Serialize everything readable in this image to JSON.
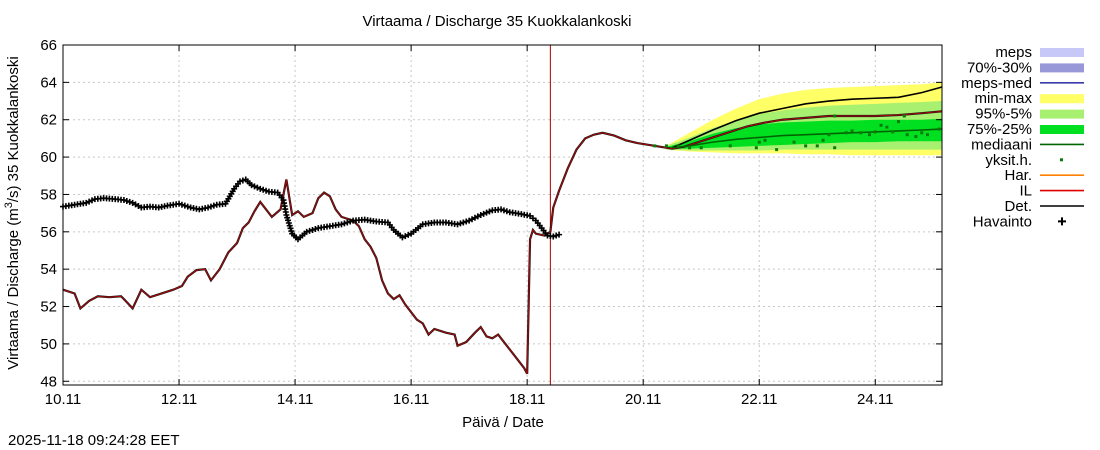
{
  "chart_data": {
    "type": "line",
    "title": "Virtaama / Discharge  35 Kuokkalankoski",
    "xlabel": "Päivä / Date",
    "ylabel_main": "Virtaama / Discharge (m",
    "ylabel_sup": "3",
    "ylabel_tail": "/s)  35 Kuokkalankoski",
    "timestamp": "2025-11-18 09:24:28 EET",
    "xlim": [
      10.0,
      25.15
    ],
    "ylim": [
      47.8,
      66.0
    ],
    "x_ticks": [
      {
        "x": 10,
        "label": "10.11"
      },
      {
        "x": 12,
        "label": "12.11"
      },
      {
        "x": 14,
        "label": "14.11"
      },
      {
        "x": 16,
        "label": "16.11"
      },
      {
        "x": 18,
        "label": "18.11"
      },
      {
        "x": 20,
        "label": "20.11"
      },
      {
        "x": 22,
        "label": "22.11"
      },
      {
        "x": 24,
        "label": "24.11"
      }
    ],
    "y_ticks": [
      {
        "y": 48,
        "label": "48"
      },
      {
        "y": 50,
        "label": "50"
      },
      {
        "y": 52,
        "label": "52"
      },
      {
        "y": 54,
        "label": "54"
      },
      {
        "y": 56,
        "label": "56"
      },
      {
        "y": 58,
        "label": "58"
      },
      {
        "y": 60,
        "label": "60"
      },
      {
        "y": 62,
        "label": "62"
      },
      {
        "y": 64,
        "label": "64"
      },
      {
        "y": 66,
        "label": "66"
      }
    ],
    "forecast_start_x": 18.4,
    "legend": [
      {
        "label": "meps",
        "kind": "box",
        "color": "#c8c8f8"
      },
      {
        "label": "70%-30%",
        "kind": "box",
        "color": "#9898d8"
      },
      {
        "label": "meps-med",
        "kind": "line",
        "color": "#3a3aa8"
      },
      {
        "label": "min-max",
        "kind": "box",
        "color": "#ffff66"
      },
      {
        "label": "95%-5%",
        "kind": "box",
        "color": "#a8f070"
      },
      {
        "label": "75%-25%",
        "kind": "box",
        "color": "#00e020"
      },
      {
        "label": "mediaani",
        "kind": "line",
        "color": "#006400"
      },
      {
        "label": "yksit.h.",
        "kind": "dot",
        "color": "#0a7a0a"
      },
      {
        "label": "Har.",
        "kind": "line",
        "color": "#ff8000"
      },
      {
        "label": "IL",
        "kind": "line",
        "color": "#e00000"
      },
      {
        "label": "Det.",
        "kind": "line",
        "color": "#000000"
      },
      {
        "label": "Havainto",
        "kind": "plus",
        "color": "#000000"
      }
    ],
    "series": [
      {
        "name": "Havainto",
        "style": "plus",
        "color": "#000000",
        "points": [
          [
            10.0,
            57.35
          ],
          [
            10.2,
            57.45
          ],
          [
            10.4,
            57.55
          ],
          [
            10.55,
            57.75
          ],
          [
            10.7,
            57.8
          ],
          [
            10.9,
            57.75
          ],
          [
            11.05,
            57.7
          ],
          [
            11.2,
            57.55
          ],
          [
            11.35,
            57.3
          ],
          [
            11.5,
            57.35
          ],
          [
            11.65,
            57.3
          ],
          [
            11.8,
            57.4
          ],
          [
            12.0,
            57.5
          ],
          [
            12.1,
            57.4
          ],
          [
            12.2,
            57.3
          ],
          [
            12.35,
            57.2
          ],
          [
            12.5,
            57.3
          ],
          [
            12.65,
            57.45
          ],
          [
            12.8,
            57.5
          ],
          [
            12.95,
            58.3
          ],
          [
            13.05,
            58.7
          ],
          [
            13.15,
            58.8
          ],
          [
            13.25,
            58.5
          ],
          [
            13.4,
            58.3
          ],
          [
            13.55,
            58.15
          ],
          [
            13.7,
            58.1
          ],
          [
            13.8,
            57.7
          ],
          [
            13.85,
            56.9
          ],
          [
            13.95,
            55.9
          ],
          [
            14.05,
            55.6
          ],
          [
            14.2,
            56.0
          ],
          [
            14.4,
            56.2
          ],
          [
            14.6,
            56.3
          ],
          [
            14.8,
            56.4
          ],
          [
            15.0,
            56.6
          ],
          [
            15.2,
            56.65
          ],
          [
            15.4,
            56.55
          ],
          [
            15.6,
            56.5
          ],
          [
            15.7,
            56.1
          ],
          [
            15.85,
            55.7
          ],
          [
            16.0,
            55.9
          ],
          [
            16.2,
            56.4
          ],
          [
            16.4,
            56.5
          ],
          [
            16.6,
            56.5
          ],
          [
            16.8,
            56.4
          ],
          [
            17.0,
            56.6
          ],
          [
            17.2,
            56.9
          ],
          [
            17.4,
            57.15
          ],
          [
            17.55,
            57.2
          ],
          [
            17.7,
            57.05
          ],
          [
            17.9,
            56.95
          ],
          [
            18.05,
            56.85
          ],
          [
            18.15,
            56.6
          ],
          [
            18.25,
            56.2
          ],
          [
            18.35,
            55.8
          ],
          [
            18.45,
            55.75
          ],
          [
            18.55,
            55.85
          ],
          [
            18.62,
            55.9
          ]
        ]
      },
      {
        "name": "IL",
        "style": "line",
        "color": "#e00000",
        "points": [
          [
            10.0,
            52.9
          ],
          [
            10.2,
            52.7
          ],
          [
            10.3,
            51.9
          ],
          [
            10.45,
            52.3
          ],
          [
            10.6,
            52.55
          ],
          [
            10.8,
            52.5
          ],
          [
            11.0,
            52.55
          ],
          [
            11.05,
            52.4
          ],
          [
            11.2,
            51.9
          ],
          [
            11.35,
            52.9
          ],
          [
            11.5,
            52.5
          ],
          [
            11.7,
            52.7
          ],
          [
            11.9,
            52.9
          ],
          [
            12.05,
            53.1
          ],
          [
            12.15,
            53.6
          ],
          [
            12.3,
            53.95
          ],
          [
            12.45,
            54.0
          ],
          [
            12.55,
            53.4
          ],
          [
            12.7,
            54.0
          ],
          [
            12.85,
            54.9
          ],
          [
            13.0,
            55.4
          ],
          [
            13.1,
            56.2
          ],
          [
            13.2,
            56.5
          ],
          [
            13.3,
            57.1
          ],
          [
            13.4,
            57.6
          ],
          [
            13.5,
            57.2
          ],
          [
            13.6,
            56.8
          ],
          [
            13.75,
            57.2
          ],
          [
            13.85,
            58.8
          ],
          [
            13.95,
            56.9
          ],
          [
            14.05,
            57.1
          ],
          [
            14.15,
            56.8
          ],
          [
            14.3,
            57.0
          ],
          [
            14.4,
            57.8
          ],
          [
            14.5,
            58.1
          ],
          [
            14.6,
            57.9
          ],
          [
            14.7,
            57.2
          ],
          [
            14.8,
            56.8
          ],
          [
            15.0,
            56.6
          ],
          [
            15.1,
            56.3
          ],
          [
            15.2,
            55.6
          ],
          [
            15.3,
            55.2
          ],
          [
            15.4,
            54.6
          ],
          [
            15.5,
            53.4
          ],
          [
            15.6,
            52.7
          ],
          [
            15.7,
            52.4
          ],
          [
            15.8,
            52.6
          ],
          [
            15.9,
            52.1
          ],
          [
            16.0,
            51.7
          ],
          [
            16.1,
            51.3
          ],
          [
            16.2,
            51.1
          ],
          [
            16.3,
            50.5
          ],
          [
            16.4,
            50.8
          ],
          [
            16.6,
            50.6
          ],
          [
            16.75,
            50.5
          ],
          [
            16.8,
            49.9
          ],
          [
            16.95,
            50.1
          ],
          [
            17.1,
            50.6
          ],
          [
            17.2,
            50.9
          ],
          [
            17.3,
            50.4
          ],
          [
            17.4,
            50.3
          ],
          [
            17.5,
            50.5
          ],
          [
            17.6,
            50.1
          ],
          [
            17.8,
            49.3
          ],
          [
            17.95,
            48.7
          ],
          [
            18.0,
            48.4
          ],
          [
            18.05,
            55.6
          ],
          [
            18.1,
            56.1
          ],
          [
            18.15,
            55.9
          ],
          [
            18.3,
            55.8
          ],
          [
            18.4,
            56.0
          ],
          [
            18.45,
            57.3
          ],
          [
            18.55,
            58.2
          ],
          [
            18.7,
            59.4
          ],
          [
            18.85,
            60.4
          ],
          [
            19.0,
            61.0
          ],
          [
            19.15,
            61.2
          ],
          [
            19.3,
            61.3
          ],
          [
            19.5,
            61.15
          ],
          [
            19.7,
            60.9
          ],
          [
            19.9,
            60.75
          ],
          [
            20.1,
            60.65
          ],
          [
            20.3,
            60.55
          ],
          [
            20.5,
            60.45
          ],
          [
            20.7,
            60.55
          ],
          [
            20.9,
            60.75
          ],
          [
            21.2,
            61.05
          ],
          [
            21.5,
            61.35
          ],
          [
            21.8,
            61.65
          ],
          [
            22.1,
            61.85
          ],
          [
            22.4,
            62.0
          ],
          [
            22.8,
            62.1
          ],
          [
            23.2,
            62.2
          ],
          [
            23.6,
            62.2
          ],
          [
            24.0,
            62.2
          ],
          [
            24.4,
            62.25
          ],
          [
            24.8,
            62.35
          ],
          [
            25.15,
            62.45
          ]
        ]
      },
      {
        "name": "Det.",
        "style": "line",
        "color": "#000000",
        "points": [
          [
            20.5,
            60.5
          ],
          [
            20.8,
            60.9
          ],
          [
            21.2,
            61.45
          ],
          [
            21.6,
            61.95
          ],
          [
            22.0,
            62.35
          ],
          [
            22.4,
            62.6
          ],
          [
            22.8,
            62.85
          ],
          [
            23.2,
            63.0
          ],
          [
            23.6,
            63.1
          ],
          [
            24.0,
            63.15
          ],
          [
            24.4,
            63.2
          ],
          [
            24.8,
            63.45
          ],
          [
            25.15,
            63.75
          ]
        ]
      },
      {
        "name": "mediaani",
        "style": "line",
        "color": "#006400",
        "points": [
          [
            20.5,
            60.5
          ],
          [
            20.8,
            60.6
          ],
          [
            21.2,
            60.8
          ],
          [
            21.6,
            60.95
          ],
          [
            22.0,
            61.05
          ],
          [
            22.4,
            61.15
          ],
          [
            22.8,
            61.2
          ],
          [
            23.2,
            61.25
          ],
          [
            23.6,
            61.3
          ],
          [
            24.0,
            61.35
          ],
          [
            24.4,
            61.4
          ],
          [
            24.8,
            61.45
          ],
          [
            25.15,
            61.5
          ]
        ]
      }
    ],
    "bands": [
      {
        "name": "min-max",
        "color": "#ffff66",
        "x": [
          20.4,
          20.8,
          21.2,
          21.6,
          22.0,
          22.4,
          22.8,
          23.2,
          23.6,
          24.0,
          24.4,
          24.8,
          25.15
        ],
        "upper": [
          60.6,
          61.3,
          62.0,
          62.6,
          63.1,
          63.4,
          63.6,
          63.7,
          63.75,
          63.8,
          63.85,
          63.9,
          64.0
        ],
        "lower": [
          60.4,
          60.3,
          60.25,
          60.2,
          60.2,
          60.2,
          60.15,
          60.15,
          60.1,
          60.1,
          60.1,
          60.1,
          60.1
        ]
      },
      {
        "name": "95%-5%",
        "color": "#a8f070",
        "x": [
          20.4,
          20.8,
          21.2,
          21.6,
          22.0,
          22.4,
          22.8,
          23.2,
          23.6,
          24.0,
          24.4,
          24.8,
          25.15
        ],
        "upper": [
          60.6,
          61.05,
          61.55,
          61.95,
          62.3,
          62.5,
          62.65,
          62.75,
          62.8,
          62.85,
          62.9,
          62.95,
          63.0
        ],
        "lower": [
          60.4,
          60.35,
          60.35,
          60.35,
          60.35,
          60.4,
          60.4,
          60.4,
          60.4,
          60.4,
          60.4,
          60.4,
          60.4
        ]
      },
      {
        "name": "75%-25%",
        "color": "#00e020",
        "x": [
          20.4,
          20.8,
          21.2,
          21.6,
          22.0,
          22.4,
          22.8,
          23.2,
          23.6,
          24.0,
          24.4,
          24.8,
          25.15
        ],
        "upper": [
          60.55,
          60.85,
          61.25,
          61.55,
          61.75,
          61.85,
          61.9,
          61.95,
          61.95,
          62.0,
          62.0,
          62.0,
          62.05
        ],
        "lower": [
          60.45,
          60.45,
          60.5,
          60.55,
          60.6,
          60.65,
          60.7,
          60.75,
          60.8,
          60.8,
          60.85,
          60.85,
          60.85
        ]
      }
    ],
    "yksit_points": [
      [
        20.2,
        60.6
      ],
      [
        20.4,
        60.6
      ],
      [
        20.6,
        60.6
      ],
      [
        20.8,
        60.5
      ],
      [
        21.0,
        60.5
      ],
      [
        21.5,
        60.6
      ],
      [
        21.95,
        60.5
      ],
      [
        22.0,
        60.8
      ],
      [
        22.1,
        60.9
      ],
      [
        22.3,
        60.4
      ],
      [
        22.6,
        60.8
      ],
      [
        22.8,
        60.6
      ],
      [
        23.0,
        60.6
      ],
      [
        23.1,
        60.9
      ],
      [
        23.2,
        61.2
      ],
      [
        23.3,
        60.5
      ],
      [
        23.5,
        61.3
      ],
      [
        23.6,
        61.4
      ],
      [
        23.3,
        62.2
      ],
      [
        23.75,
        61.3
      ],
      [
        23.9,
        61.2
      ],
      [
        24.0,
        61.35
      ],
      [
        24.1,
        61.7
      ],
      [
        24.2,
        61.6
      ],
      [
        24.3,
        61.35
      ],
      [
        24.4,
        61.9
      ],
      [
        24.5,
        62.2
      ],
      [
        24.55,
        61.2
      ],
      [
        24.7,
        61.1
      ],
      [
        24.8,
        61.3
      ],
      [
        24.9,
        61.2
      ],
      [
        25.1,
        61.5
      ]
    ]
  }
}
